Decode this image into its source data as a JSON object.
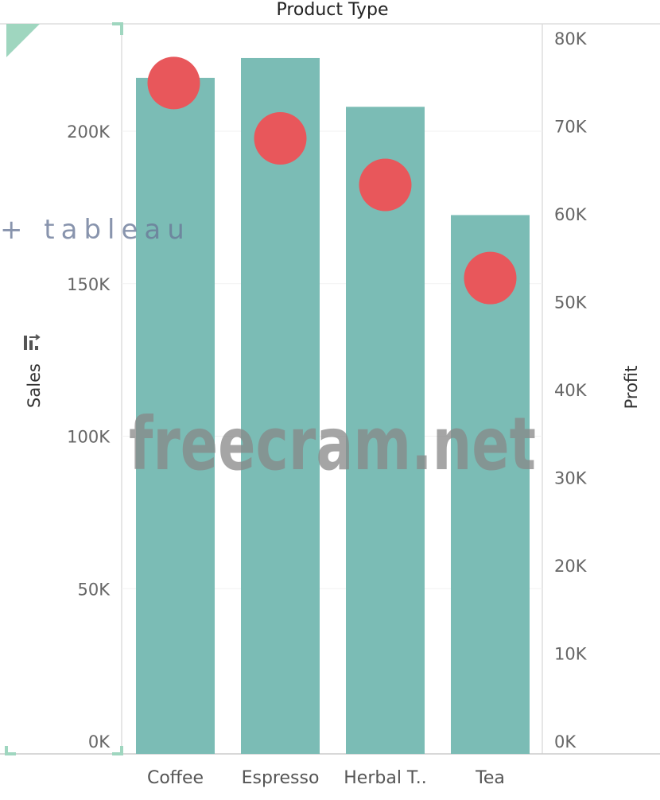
{
  "chart_data": {
    "type": "bar",
    "title": "Product Type",
    "categories": [
      "Coffee",
      "Espresso",
      "Herbal T..",
      "Tea"
    ],
    "series": [
      {
        "name": "Sales",
        "mark": "bar",
        "axis": "left",
        "color": "#7bbcb5",
        "values": [
          217500,
          224000,
          208000,
          172500
        ]
      },
      {
        "name": "Profit",
        "mark": "circle",
        "axis": "right",
        "color": "#e8575b",
        "values": [
          74900,
          68600,
          63300,
          52700
        ]
      }
    ],
    "ylabel": "Sales",
    "y2label": "Profit",
    "ylim": [
      0,
      230000
    ],
    "y2lim": [
      0,
      83000
    ],
    "yticks": [
      0,
      50000,
      100000,
      150000,
      200000
    ],
    "yticklabels": [
      "0K",
      "50K",
      "100K",
      "150K",
      "200K"
    ],
    "y2ticks": [
      0,
      10000,
      20000,
      30000,
      40000,
      50000,
      60000,
      70000,
      80000
    ],
    "y2ticklabels": [
      "0K",
      "10K",
      "20K",
      "30K",
      "40K",
      "50K",
      "60K",
      "70K",
      "80K"
    ],
    "grid": true,
    "icons": {
      "sort": "sort-descending-icon"
    }
  },
  "watermarks": {
    "logo": "tableau",
    "site": "freecram.net"
  }
}
